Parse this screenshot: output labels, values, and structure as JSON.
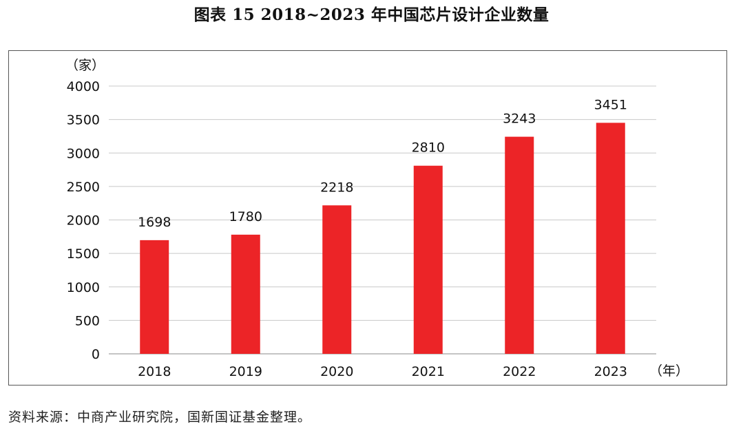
{
  "title": "图表 15  2018~2023 年中国芯片设计企业数量",
  "source": "资料来源：中商产业研究院，国新国证基金整理。",
  "colors": {
    "bar": "#ec2427",
    "grid": "#c8c8c8",
    "axis": "#888888",
    "text": "#111111"
  },
  "chart_data": {
    "type": "bar",
    "title": "图表 15  2018~2023 年中国芯片设计企业数量",
    "ylabel": "（家）",
    "xlabel": "（年）",
    "categories": [
      "2018",
      "2019",
      "2020",
      "2021",
      "2022",
      "2023"
    ],
    "values": [
      1698,
      1780,
      2218,
      2810,
      3243,
      3451
    ],
    "data_labels": [
      "1698",
      "1780",
      "2218",
      "2810",
      "3243",
      "3451"
    ],
    "ylim": [
      0,
      4000
    ],
    "yticks": [
      0,
      500,
      1000,
      1500,
      2000,
      2500,
      3000,
      3500,
      4000
    ],
    "grid": true,
    "legend": "none"
  }
}
